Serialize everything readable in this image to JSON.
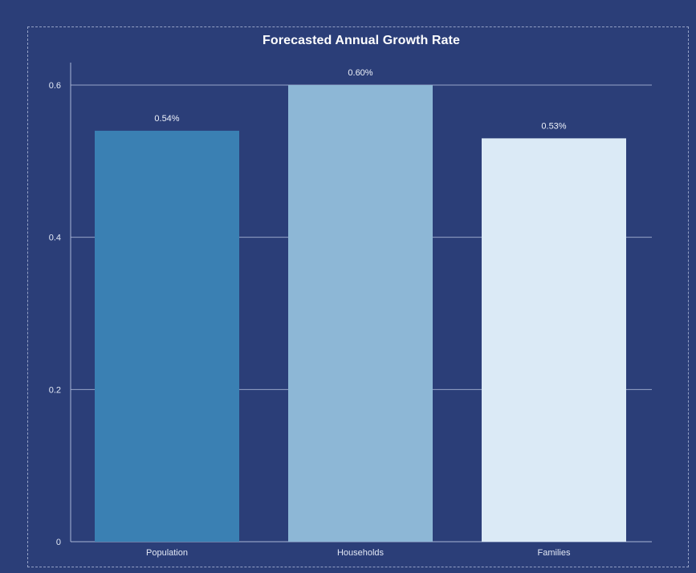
{
  "chart_data": {
    "type": "bar",
    "title": "Forecasted Annual Growth Rate",
    "categories": [
      "Population",
      "Households",
      "Families"
    ],
    "values": [
      0.54,
      0.6,
      0.53
    ],
    "data_labels": [
      "0.54%",
      "0.60%",
      "0.53%"
    ],
    "bar_colors": [
      "#3a80b3",
      "#8db7d6",
      "#dbeaf6"
    ],
    "y_ticks": [
      0,
      0.2,
      0.4,
      0.6
    ],
    "y_tick_labels": [
      "0",
      "0.2",
      "0.4",
      "0.6"
    ],
    "ylim": [
      0,
      0.6
    ],
    "xlabel": "",
    "ylabel": "",
    "grid": true,
    "legend": "none"
  },
  "colors": {
    "background": "#2b3e78",
    "gridline": "#aab6d6",
    "text": "#e3e9f6",
    "title": "#ffffff"
  }
}
